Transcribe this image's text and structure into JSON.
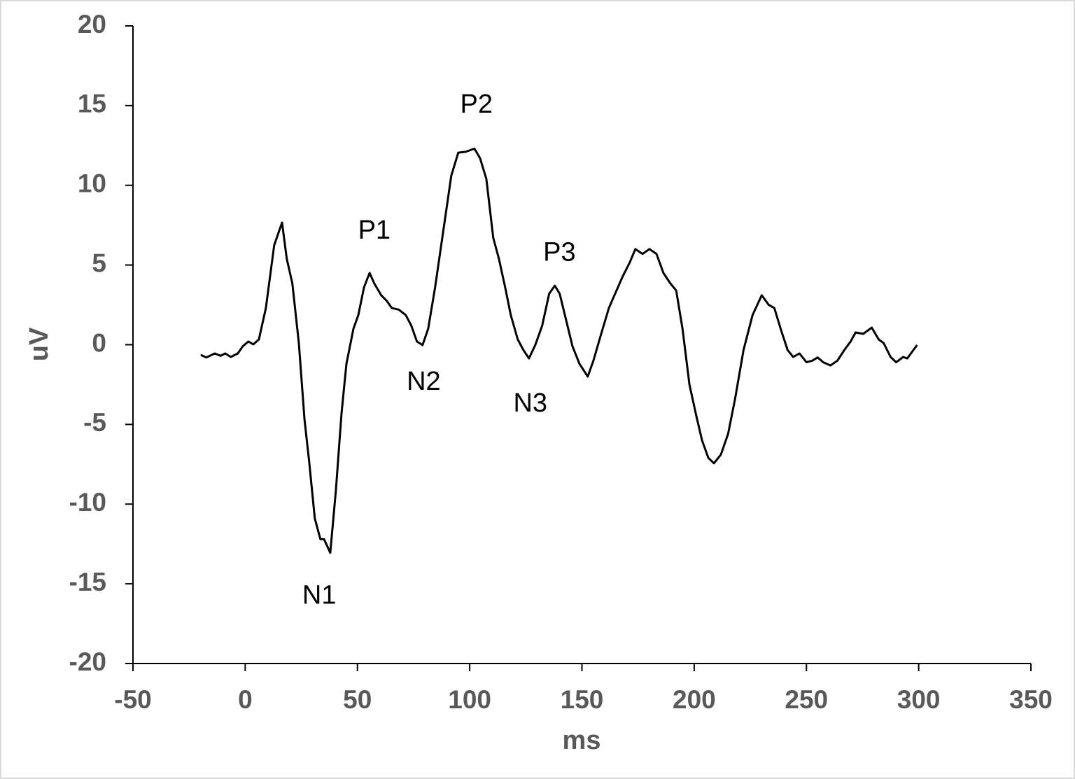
{
  "chart_data": {
    "type": "line",
    "x_label": "ms",
    "y_label": "uV",
    "x": [
      -19.8,
      -17.3,
      -13.6,
      -11,
      -8.9,
      -6.4,
      -3.3,
      -1.1,
      1.4,
      3.6,
      6.1,
      9.2,
      12.9,
      16.4,
      18.5,
      21,
      23.9,
      26.4,
      28.5,
      31,
      33.5,
      35.1,
      37.9,
      40.4,
      42.9,
      45.1,
      48.2,
      50.4,
      52.9,
      55.4,
      57.5,
      60.6,
      63.1,
      65.3,
      68.4,
      71.5,
      74,
      76.5,
      79,
      81.5,
      84.6,
      88.7,
      91.8,
      94.9,
      98.2,
      102.1,
      104.6,
      107.4,
      110.5,
      113,
      115.8,
      118.3,
      121.4,
      123.9,
      126.4,
      129.2,
      132.3,
      135.4,
      137.9,
      140.1,
      143.2,
      145.8,
      148.9,
      152.6,
      155.1,
      158.3,
      162,
      165.1,
      168.2,
      171.3,
      173.8,
      177,
      180.1,
      183.2,
      186.3,
      189.4,
      192,
      194.8,
      197.9,
      201,
      203.5,
      206.3,
      208.8,
      211.9,
      215.1,
      218.2,
      222,
      226,
      230.1,
      233.2,
      235.7,
      238.5,
      241.6,
      244.1,
      246.9,
      250,
      252.6,
      255,
      257.5,
      260.7,
      263.8,
      266.9,
      269.7,
      271.9,
      275.3,
      279.1,
      282.2,
      284.4,
      287.5,
      290,
      293.1,
      294.9,
      297.7,
      299.3
    ],
    "series": [
      {
        "color": "#000000",
        "values": [
          -0.64,
          -0.8,
          -0.55,
          -0.7,
          -0.55,
          -0.77,
          -0.55,
          -0.1,
          0.2,
          0.02,
          0.33,
          2.3,
          6.25,
          7.66,
          5.4,
          3.85,
          0.1,
          -4.7,
          -7.35,
          -10.9,
          -12.2,
          -12.2,
          -13.06,
          -9.1,
          -4.3,
          -1.2,
          1.0,
          1.86,
          3.6,
          4.5,
          3.84,
          3.1,
          2.74,
          2.3,
          2.2,
          1.86,
          1.2,
          0.2,
          -0.02,
          1.0,
          3.6,
          7.6,
          10.6,
          12.05,
          12.1,
          12.3,
          11.7,
          10.4,
          6.7,
          5.4,
          3.6,
          1.86,
          0.33,
          -0.33,
          -0.86,
          -0.02,
          1.2,
          3.2,
          3.7,
          3.2,
          1.4,
          -0.1,
          -1.2,
          -2.0,
          -1.0,
          0.55,
          2.3,
          3.3,
          4.3,
          5.16,
          6.0,
          5.7,
          6.0,
          5.7,
          4.5,
          3.84,
          3.4,
          1.0,
          -2.5,
          -4.5,
          -6.0,
          -7.1,
          -7.44,
          -6.9,
          -5.6,
          -3.4,
          -0.33,
          1.86,
          3.1,
          2.5,
          2.3,
          1.0,
          -0.33,
          -0.77,
          -0.55,
          -1.1,
          -1.0,
          -0.8,
          -1.1,
          -1.3,
          -1.0,
          -0.33,
          0.2,
          0.77,
          0.68,
          1.07,
          0.33,
          0.1,
          -0.77,
          -1.1,
          -0.77,
          -0.86,
          -0.33,
          -0.02
        ]
      }
    ],
    "xlim": [
      -50,
      350
    ],
    "xticks": [
      -50,
      0,
      50,
      100,
      150,
      200,
      250,
      300,
      350
    ],
    "ylim": [
      -20,
      20
    ],
    "yticks": [
      -20,
      -15,
      -10,
      -5,
      0,
      5,
      10,
      15,
      20
    ],
    "annotations": [
      "P1",
      "P2",
      "P3",
      "N1",
      "N2",
      "N3"
    ]
  }
}
